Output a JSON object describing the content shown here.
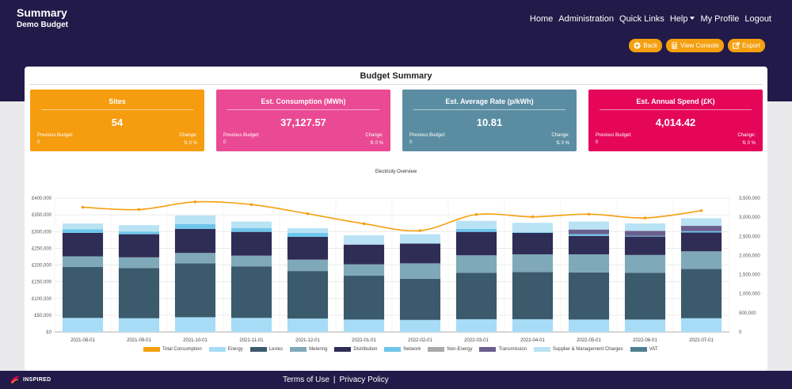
{
  "header": {
    "title": "Summary",
    "subtitle": "Demo Budget",
    "nav": [
      "Home",
      "Administration",
      "Quick Links",
      "Help",
      "My Profile",
      "Logout"
    ],
    "actions": {
      "back": "Back",
      "view_console": "View Console",
      "export": "Export"
    }
  },
  "summary": {
    "title": "Budget Summary",
    "kpis": [
      {
        "title": "Sites",
        "value": "54",
        "prev_label": "Previous Budget:",
        "prev_value": "0",
        "change_label": "Change:",
        "change_value": "0 %",
        "color": "#f59c0f"
      },
      {
        "title": "Est. Consumption (MWh)",
        "value": "37,127.57",
        "prev_label": "Previous Budget:",
        "prev_value": "0",
        "change_label": "Change:",
        "change_value": "0 %",
        "color": "#ea4a93"
      },
      {
        "title": "Est. Average Rate (p/kWh)",
        "value": "10.81",
        "prev_label": "Previous Budget:",
        "prev_value": "0",
        "change_label": "Change:",
        "change_value": "0 %",
        "color": "#5b8da2"
      },
      {
        "title": "Est. Annual Spend (£K)",
        "value": "4,014.42",
        "prev_label": "Previous Budget:",
        "prev_value": "0",
        "change_label": "Change:",
        "change_value": "0 %",
        "color": "#e5065a"
      }
    ]
  },
  "chart_data": {
    "type": "bar",
    "title": "Electricity Overview",
    "categories": [
      "2021-08-01",
      "2021-09-01",
      "2021-10-01",
      "2021-11-01",
      "2021-12-01",
      "2022-01-01",
      "2022-02-01",
      "2022-03-01",
      "2022-04-01",
      "2022-05-01",
      "2022-06-01",
      "2022-07-01"
    ],
    "y_left": {
      "min": 0,
      "max": 400000,
      "ticks": [
        "£0",
        "£50,000",
        "£100,000",
        "£150,000",
        "£200,000",
        "£250,000",
        "£300,000",
        "£350,000",
        "£400,000"
      ]
    },
    "y_right": {
      "min": 0,
      "max": 3500000,
      "ticks": [
        "0",
        "500,000",
        "1,000,000",
        "1,500,000",
        "2,000,000",
        "2,500,000",
        "3,000,000",
        "3,500,000"
      ]
    },
    "grid": true,
    "legend_position": "bottom",
    "series": [
      {
        "name": "Energy",
        "color": "#a6dcf6",
        "values": [
          42000,
          41000,
          44000,
          42000,
          40000,
          37000,
          36000,
          38000,
          38000,
          37000,
          37000,
          41000
        ]
      },
      {
        "name": "Levies",
        "color": "#3b5a6c",
        "values": [
          152000,
          150000,
          161000,
          154000,
          142000,
          131000,
          123000,
          139000,
          141000,
          141000,
          140000,
          147000
        ]
      },
      {
        "name": "Metering",
        "color": "#7fa9b8",
        "values": [
          32000,
          32000,
          31000,
          32000,
          34000,
          34000,
          46000,
          52000,
          53000,
          54000,
          53000,
          53000
        ]
      },
      {
        "name": "Distribution",
        "color": "#2f2d55",
        "values": [
          70000,
          69000,
          72000,
          71000,
          68000,
          59000,
          59000,
          70000,
          64000,
          55000,
          55000,
          56000
        ]
      },
      {
        "name": "Network",
        "color": "#6ec6ec",
        "values": [
          11000,
          8000,
          14000,
          11000,
          12000,
          0,
          0,
          9000,
          2000,
          5000,
          2000,
          4000
        ]
      },
      {
        "name": "Non-Energy",
        "color": "#a9a9a9",
        "values": [
          0,
          0,
          0,
          0,
          0,
          0,
          0,
          0,
          0,
          0,
          0,
          0
        ]
      },
      {
        "name": "Transmission",
        "color": "#6a5f8e",
        "values": [
          0,
          0,
          0,
          0,
          0,
          0,
          0,
          0,
          0,
          14000,
          15000,
          16000
        ]
      },
      {
        "name": "Supplier & Management Charges",
        "color": "#b9e3f4",
        "values": [
          17000,
          19000,
          26000,
          20000,
          14000,
          28000,
          28000,
          24000,
          28000,
          24000,
          22000,
          23000
        ]
      },
      {
        "name": "VAT",
        "color": "#4f7f91",
        "values": [
          0,
          0,
          0,
          0,
          0,
          0,
          0,
          0,
          0,
          0,
          0,
          0
        ]
      }
    ],
    "line": {
      "name": "Total Consumption",
      "color": "#f5a011",
      "values": [
        3260000,
        3200000,
        3400000,
        3330000,
        3090000,
        2830000,
        2650000,
        3070000,
        3010000,
        3080000,
        2980000,
        3170000
      ]
    }
  },
  "footer": {
    "logo_text": "INSPIRED",
    "terms": "Terms of Use",
    "privacy": "Privacy Policy",
    "separator": "|"
  }
}
